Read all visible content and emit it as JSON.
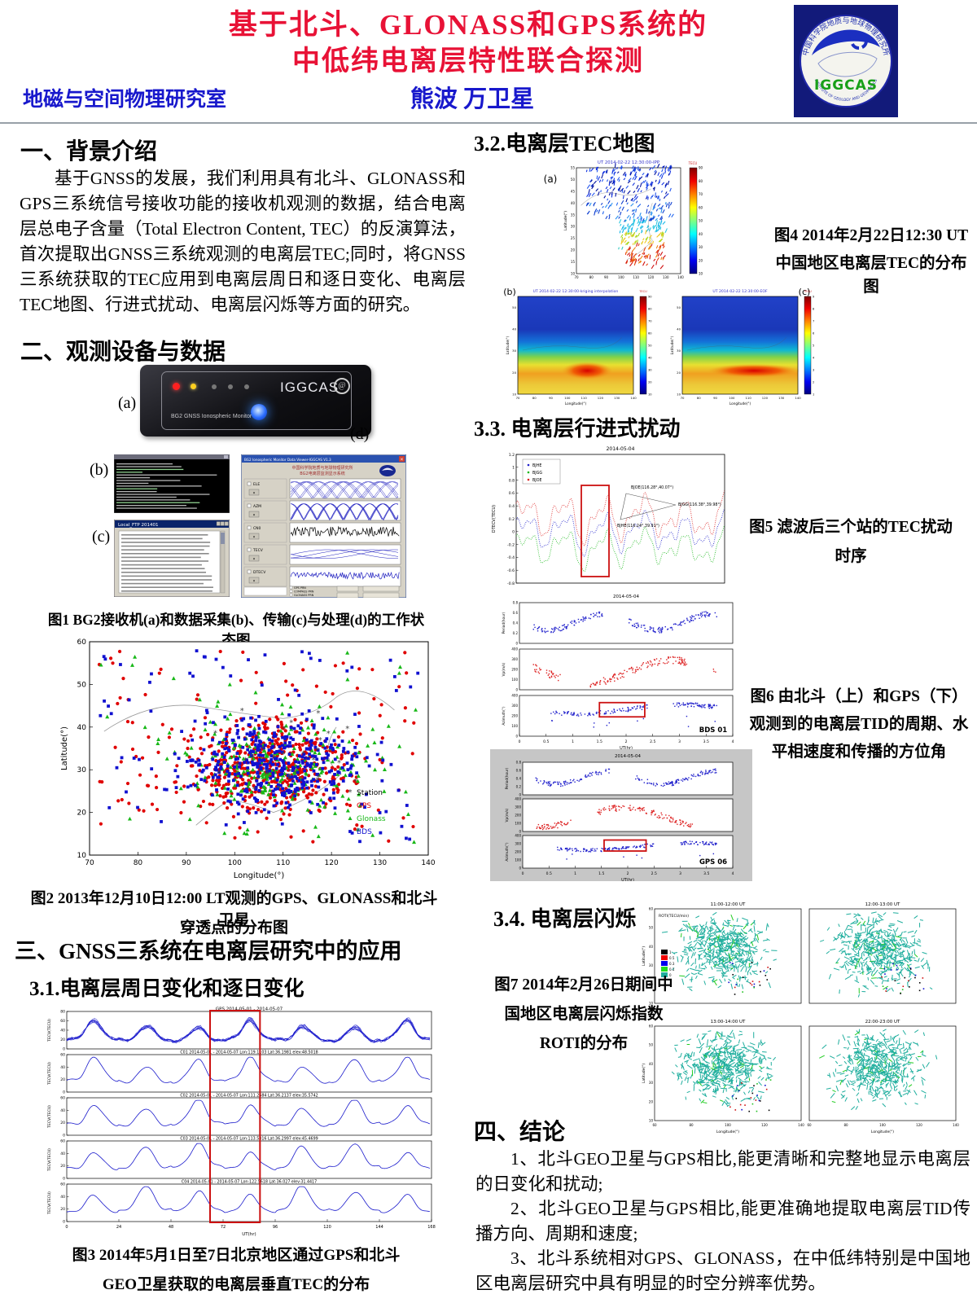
{
  "header": {
    "title_line1": "基于北斗、GLONASS和GPS系统的",
    "title_line2": "中低纬电离层特性联合探测",
    "department": "地磁与空间物理研究室",
    "authors": "熊波  万卫星",
    "logo": {
      "cn_ring": "中国科学院地质与地球物理研究所",
      "en_ring": "INSTITUTE OF GEOLOGY AND GEOPHYSICS",
      "name": "IGGCAS"
    }
  },
  "left": {
    "s1_heading": "一、背景介绍",
    "s1_body": "基于GNSS的发展，我们利用具有北斗、GLONASS和GPS三系统信号接收功能的接收机观测的数据，结合电离层总电子含量（Total Electron Content, TEC）的反演算法，首次提取出GNSS三系统观测的电离层TEC;同时，将GNSS三系统获取的TEC应用到电离层周日和逐日变化、电离层TEC地图、行进式扰动、电离层闪烁等方面的研究。",
    "s2_heading": "二、观测设备与数据",
    "fig1": {
      "label_a": "(a)",
      "label_b": "(b)",
      "label_c": "(c)",
      "label_d": "(d)",
      "receiver_brand": "IGGCAS",
      "receiver_model": "BG2 GNSS Ionospheric Monitor",
      "ftp_title": "Local_FTP 201401",
      "software": {
        "title": "BG2 Ionospheric Monitor Data Viewer-IGGCAS V1.3",
        "org_line1": "中国科学院地质与地球物理研究所",
        "org_line2": "BG2电离层监测显示系统",
        "panel_labels": [
          "ELE",
          "AZM",
          "CN0",
          "TECV",
          "DTECV"
        ],
        "systems": [
          "GPS",
          "COMPASS",
          "GLONASS"
        ],
        "prn_label": "PRN"
      },
      "caption": "图1 BG2接收机(a)和数据采集(b)、传输(c)与处理(d)的工作状态图"
    },
    "fig2_caption": [
      "图2 2013年12月10日12:00 LT观测的GPS、GLONASS和北斗卫星",
      "穿透点的分布图"
    ],
    "s3_heading": "三、GNSS三系统在电离层研究中的应用",
    "s31_heading": "3.1.电离层周日变化和逐日变化",
    "fig3_caption": [
      "图3 2014年5月1日至7日北京地区通过GPS和北斗",
      "GEO卫星获取的电离层垂直TEC的分布"
    ]
  },
  "right": {
    "s32_heading": "3.2.电离层TEC地图",
    "fig4_caption": [
      "图4 2014年2月22日12:30 UT",
      "中国地区电离层TEC的分布图"
    ],
    "s33_heading": "3.3. 电离层行进式扰动",
    "fig5_caption": [
      "图5 滤波后三个站的TEC扰动",
      "时序"
    ],
    "fig6_caption": [
      "图6 由北斗（上）和GPS（下）",
      "观测到的电离层TID的周期、水",
      "平相速度和传播的方位角"
    ],
    "s34_heading": "3.4. 电离层闪烁",
    "fig7_caption": [
      "图7 2014年2月26日期间中",
      "国地区电离层闪烁指数",
      "ROTI的分布"
    ],
    "s4_heading": "四、结论",
    "conclusions": [
      "1、北斗GEO卫星与GPS相比,能更清晰和完整地显示电离层的日变化和扰动;",
      "2、北斗GEO卫星与GPS相比,能更准确地提取电离层TID传播方向、周期和速度;",
      "3、北斗系统相对GPS、GLONASS，在中低纬特别是中国地区电离层研究中具有明显的时空分辨率优势。"
    ]
  },
  "chart_data": [
    {
      "id": "fig2_pierce_points",
      "type": "scatter",
      "title": "",
      "xlabel": "Longitude(°)",
      "ylabel": "Latitude(°)",
      "xlim": [
        70,
        140
      ],
      "ylim": [
        10,
        60
      ],
      "xticks": [
        70,
        80,
        90,
        100,
        110,
        120,
        130,
        140
      ],
      "yticks": [
        10,
        20,
        30,
        40,
        50,
        60
      ],
      "legend": [
        {
          "label": "Station",
          "color": "#444444",
          "marker": "asterisk"
        },
        {
          "label": "GPS",
          "color": "#e00000",
          "marker": "circle"
        },
        {
          "label": "Glonass",
          "color": "#18b818",
          "marker": "triangle"
        },
        {
          "label": "BDS",
          "color": "#1010d0",
          "marker": "square"
        }
      ],
      "point_counts": {
        "GPS": 640,
        "Glonass": 270,
        "BDS": 470,
        "Station": 26
      },
      "cluster": {
        "lon_center": 107,
        "lat_center": 31,
        "lon_spread": 16,
        "lat_spread": 10
      }
    },
    {
      "id": "fig3_vtec",
      "type": "line",
      "xlabel": "UT(hr)",
      "xticks": [
        0,
        24,
        48,
        72,
        96,
        120,
        144,
        168
      ],
      "xlim": [
        0,
        168
      ],
      "ylabel": "TECV(TECU)",
      "line_color": "#1a1acc",
      "highlight_box": {
        "x0": 66,
        "x1": 89,
        "color": "#cc1111"
      },
      "panels": [
        {
          "title": "GPS 2014-05-01 - 2014-05-07",
          "ylim": [
            0,
            80
          ],
          "yticks": [
            0,
            20,
            40,
            60,
            80
          ],
          "traces": 8
        },
        {
          "title": "C01 2014-05-01 - 2014-05-07  Lon:119.1103  Lat:36.1981  elev:48.5018",
          "ylim": [
            0,
            60
          ],
          "yticks": [
            0,
            20,
            40,
            60
          ],
          "traces": 1
        },
        {
          "title": "C02 2014-05-01 - 2014-05-07  Lon:111.2684  Lat:36.2137  elev:35.5742",
          "ylim": [
            0,
            60
          ],
          "yticks": [
            0,
            20,
            40,
            60
          ],
          "traces": 1
        },
        {
          "title": "C03 2014-05-01 - 2014-05-07  Lon:113.5316  Lat:36.2997  elev:45.4699",
          "ylim": [
            0,
            60
          ],
          "yticks": [
            0,
            20,
            40,
            60
          ],
          "traces": 1
        },
        {
          "title": "C04 2014-05-01 - 2014-05-07  Lon:122.5618  Lat:36.027  elev:31.4417",
          "ylim": [
            0,
            60
          ],
          "yticks": [
            0,
            20,
            40,
            60
          ],
          "traces": 1
        }
      ],
      "tec_range_tecu": [
        15,
        55
      ]
    },
    {
      "id": "fig4_tec_maps",
      "type": "heatmap",
      "subfigs": [
        {
          "label": "(a)",
          "title": "UT  2014-02-22 12:30:00-IPP",
          "style": "pierce-segments"
        },
        {
          "label": "(b)",
          "title": "UT  2014-02-22 12:30:00-kriging interpolation",
          "style": "interpolated-map"
        },
        {
          "label": "(c)",
          "title": "UT  2014-02-22 12:30:00-EOF",
          "style": "interpolated-map"
        }
      ],
      "xlabel": "Longitude(°)",
      "ylabel": "Latitude(°)",
      "xlim": [
        70,
        140
      ],
      "ylim": [
        10,
        55
      ],
      "xticks": [
        70,
        80,
        90,
        100,
        110,
        120,
        130,
        140
      ],
      "yticks": [
        10,
        15,
        20,
        25,
        30,
        35,
        40,
        45,
        50,
        55
      ],
      "colorbar": {
        "label": "TECU",
        "ticks": [
          10,
          20,
          30,
          40,
          50,
          60,
          70,
          80,
          90
        ],
        "palette_low_to_high": [
          "#000080",
          "#0000f0",
          "#0080ff",
          "#00ffff",
          "#80ff80",
          "#ffff00",
          "#ff8000",
          "#f00000",
          "#800000"
        ]
      },
      "hotspot": {
        "lon": 115,
        "lat": 20,
        "value_tecu": 90
      }
    },
    {
      "id": "fig5_tec_disturbance",
      "type": "line",
      "title": "2014-05-04",
      "ylabel": "DTECV(TECU)",
      "ylim": [
        -0.8,
        1.2
      ],
      "yticks": [
        -0.8,
        -0.6,
        -0.4,
        -0.2,
        0,
        0.2,
        0.4,
        0.6,
        0.8,
        1,
        1.2
      ],
      "series": [
        {
          "name": "BJHE",
          "color": "#2222cc"
        },
        {
          "name": "BJGG",
          "color": "#18b818"
        },
        {
          "name": "BJOE",
          "color": "#dd2222"
        }
      ],
      "annotations": [
        "BJOE(116.28°,40.07°)",
        "BJGG(116.38°,39.98°)",
        "BJHE(116.24°,39.91°)"
      ],
      "highlight_color": "#cc1111"
    },
    {
      "id": "fig6_tid_params",
      "type": "scatter",
      "groups": [
        {
          "name": "BDS 01",
          "title": "2014-05-04",
          "background": "#ffffff"
        },
        {
          "name": "GPS 06",
          "title": "2014-05-04",
          "background": "#c6c6c6"
        }
      ],
      "panels": [
        {
          "ylabel": "Period(hour)",
          "ylim": [
            0,
            0.8
          ],
          "yticks": [
            0,
            0.2,
            0.4,
            0.6,
            0.8
          ],
          "color": "#2222cc"
        },
        {
          "ylabel": "Vp(m/s)",
          "ylim": [
            0,
            400
          ],
          "yticks": [
            0,
            100,
            200,
            300,
            400
          ],
          "color": "#dd2222"
        },
        {
          "ylabel": "Azimuth(°)",
          "ylim": [
            0,
            400
          ],
          "yticks": [
            0,
            100,
            200,
            300,
            400
          ],
          "color": "#2222cc"
        }
      ],
      "xlabel": "UT(hr)",
      "xticks": [
        0,
        0.5,
        1,
        1.5,
        2,
        2.5,
        3,
        3.5,
        4
      ],
      "xlim": [
        0,
        4
      ],
      "highlight_color": "#cc1111"
    },
    {
      "id": "fig7_roti",
      "type": "scatter",
      "panel_titles": [
        "11:00-12:00 UT",
        "12:00-13:00 UT",
        "13:00-14:00 UT",
        "22:00-23:00 UT"
      ],
      "legend": {
        "label": "ROTI(TECU/min)",
        "entries": [
          {
            "value": "1",
            "color": "#000000"
          },
          {
            "value": "0.5",
            "color": "#ee0000"
          },
          {
            "value": "0.3",
            "color": "#0000ee"
          },
          {
            "value": "0.1",
            "color": "#22dd22"
          },
          {
            "value": "0",
            "color": "#1fae9e"
          }
        ]
      },
      "xlabel": "Longitude(°)",
      "ylabel": "Latitude(°)",
      "xlim": [
        60,
        140
      ],
      "ylim": [
        10,
        60
      ],
      "xticks": [
        60,
        80,
        100,
        120,
        140
      ],
      "yticks": [
        10,
        20,
        30,
        40,
        50,
        60
      ]
    }
  ]
}
